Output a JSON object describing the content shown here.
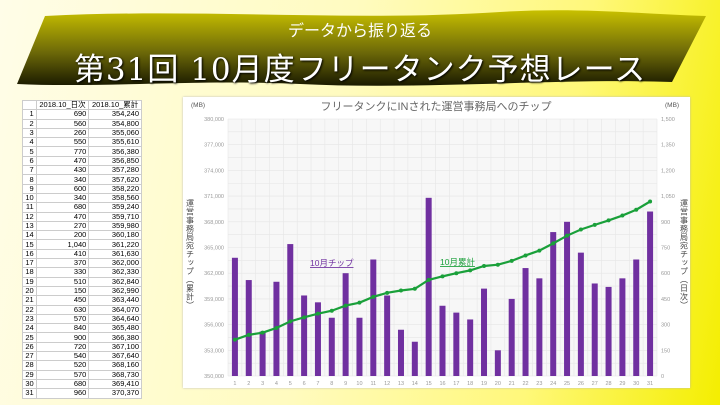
{
  "header": {
    "subtitle": "データから振り返る",
    "title": "第31回 10月度フリータンク予想レース"
  },
  "table": {
    "headers": [
      "",
      "2018.10_日次",
      "2018.10_累計"
    ],
    "rows": [
      [
        "1",
        "690",
        "354,240"
      ],
      [
        "2",
        "560",
        "354,800"
      ],
      [
        "3",
        "260",
        "355,060"
      ],
      [
        "4",
        "550",
        "355,610"
      ],
      [
        "5",
        "770",
        "356,380"
      ],
      [
        "6",
        "470",
        "356,850"
      ],
      [
        "7",
        "430",
        "357,280"
      ],
      [
        "8",
        "340",
        "357,620"
      ],
      [
        "9",
        "600",
        "358,220"
      ],
      [
        "10",
        "340",
        "358,560"
      ],
      [
        "11",
        "680",
        "359,240"
      ],
      [
        "12",
        "470",
        "359,710"
      ],
      [
        "13",
        "270",
        "359,980"
      ],
      [
        "14",
        "200",
        "360,180"
      ],
      [
        "15",
        "1,040",
        "361,220"
      ],
      [
        "16",
        "410",
        "361,630"
      ],
      [
        "17",
        "370",
        "362,000"
      ],
      [
        "18",
        "330",
        "362,330"
      ],
      [
        "19",
        "510",
        "362,840"
      ],
      [
        "20",
        "150",
        "362,990"
      ],
      [
        "21",
        "450",
        "363,440"
      ],
      [
        "22",
        "630",
        "364,070"
      ],
      [
        "23",
        "570",
        "364,640"
      ],
      [
        "24",
        "840",
        "365,480"
      ],
      [
        "25",
        "900",
        "366,380"
      ],
      [
        "26",
        "720",
        "367,100"
      ],
      [
        "27",
        "540",
        "367,640"
      ],
      [
        "28",
        "520",
        "368,160"
      ],
      [
        "29",
        "570",
        "368,730"
      ],
      [
        "30",
        "680",
        "369,410"
      ],
      [
        "31",
        "960",
        "370,370"
      ]
    ]
  },
  "chart_data": {
    "type": "bar+line",
    "title": "フリータンクにINされた運営事務局へのチップ",
    "categories": [
      "1",
      "2",
      "3",
      "4",
      "5",
      "6",
      "7",
      "8",
      "9",
      "10",
      "11",
      "12",
      "13",
      "14",
      "15",
      "16",
      "17",
      "18",
      "19",
      "20",
      "21",
      "22",
      "23",
      "24",
      "25",
      "26",
      "27",
      "28",
      "29",
      "30",
      "31"
    ],
    "series": [
      {
        "name": "10月チップ",
        "type": "bar",
        "axis": "right",
        "color": "#7030a0",
        "values": [
          690,
          560,
          260,
          550,
          770,
          470,
          430,
          340,
          600,
          340,
          680,
          470,
          270,
          200,
          1040,
          410,
          370,
          330,
          510,
          150,
          450,
          630,
          570,
          840,
          900,
          720,
          540,
          520,
          570,
          680,
          960
        ]
      },
      {
        "name": "10月累計",
        "type": "line",
        "axis": "left",
        "color": "#1aa03a",
        "values": [
          354240,
          354800,
          355060,
          355610,
          356380,
          356850,
          357280,
          357620,
          358220,
          358560,
          359240,
          359710,
          359980,
          360180,
          361220,
          361630,
          362000,
          362330,
          362840,
          362990,
          363440,
          364070,
          364640,
          365480,
          366380,
          367100,
          367640,
          368160,
          368730,
          369410,
          370370
        ]
      }
    ],
    "ylabel_left": "運営事務局宛チップ（累計）",
    "ylabel_right": "運営事務局宛チップ（日次）",
    "unit_left": "(MB)",
    "unit_right": "(MB)",
    "ylim_left": [
      350000,
      380000
    ],
    "yticks_left": [
      "350,000",
      "353,000",
      "356,000",
      "359,000",
      "362,000",
      "365,000",
      "368,000",
      "371,000",
      "374,000",
      "377,000",
      "380,000"
    ],
    "ylim_right": [
      0,
      1500
    ],
    "yticks_right": [
      "0",
      "150",
      "300",
      "450",
      "600",
      "750",
      "900",
      "1,050",
      "1,200",
      "1,350",
      "1,500"
    ],
    "grid": true
  }
}
